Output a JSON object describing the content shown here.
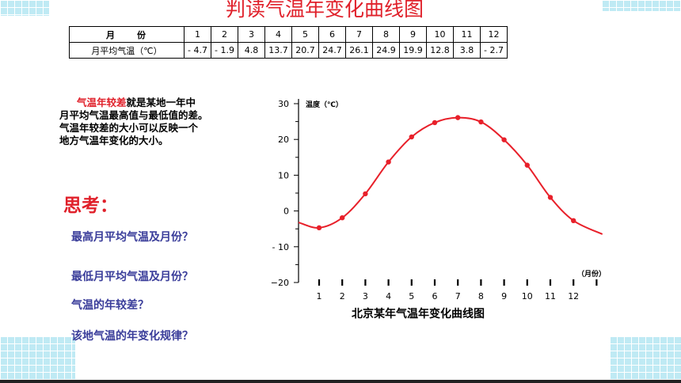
{
  "title": "判读气温年变化曲线图",
  "table": {
    "row1_label": "月　　份",
    "months": [
      "1",
      "2",
      "3",
      "4",
      "5",
      "6",
      "7",
      "8",
      "9",
      "10",
      "11",
      "12"
    ],
    "row2_label": "月平均气温（℃）",
    "temps": [
      "- 4.7",
      "- 1.9",
      "4.8",
      "13.7",
      "20.7",
      "24.7",
      "26.1",
      "24.9",
      "19.9",
      "12.8",
      "3.8",
      "- 2.7"
    ]
  },
  "description": {
    "highlight": "气温年较差",
    "line1_rest": "就是某地一年中",
    "line2": "月平均气温最高值与最低值的差。",
    "line3": "气温年较差的大小可以反映一个",
    "line4": "地方气温年变化的大小。"
  },
  "think": {
    "title": "思考：",
    "q1": "最高月平均气温及月份？",
    "q2": "最低月平均气温及月份？",
    "q3": "气温的年较差？",
    "q4": "该地气温的年变化规律？"
  },
  "chart_data": {
    "type": "line",
    "title": "北京某年气温年变化曲线图",
    "ylabel": "温度（℃）",
    "xlabel": "（月份）",
    "x": [
      1,
      2,
      3,
      4,
      5,
      6,
      7,
      8,
      9,
      10,
      11,
      12
    ],
    "values": [
      -4.7,
      -1.9,
      4.8,
      13.7,
      20.7,
      24.7,
      26.1,
      24.9,
      19.9,
      12.8,
      3.8,
      -2.7
    ],
    "ylim": [
      -20,
      30
    ],
    "yticks": [
      30,
      20,
      10,
      0,
      -10,
      -20
    ],
    "ytick_labels": [
      "30",
      "20",
      "10",
      "0",
      "- 10",
      "−20"
    ],
    "xtick_labels": [
      "1",
      "2",
      "3",
      "4",
      "5",
      "6",
      "7",
      "8",
      "9",
      "10",
      "11",
      "12"
    ],
    "line_color": "#e8202a",
    "grid": false
  }
}
